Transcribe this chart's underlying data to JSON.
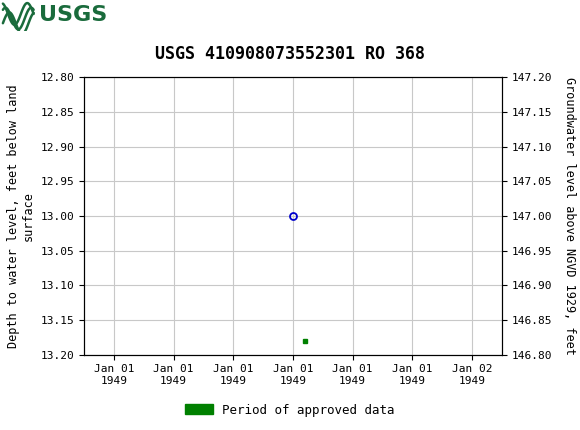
{
  "title": "USGS 410908073552301 RO 368",
  "ylabel_left": "Depth to water level, feet below land\nsurface",
  "ylabel_right": "Groundwater level above NGVD 1929, feet",
  "ylim_left": [
    12.8,
    13.2
  ],
  "ylim_right": [
    146.8,
    147.2
  ],
  "yticks_left": [
    12.8,
    12.85,
    12.9,
    12.95,
    13.0,
    13.05,
    13.1,
    13.15,
    13.2
  ],
  "yticks_right": [
    146.8,
    146.85,
    146.9,
    146.95,
    147.0,
    147.05,
    147.1,
    147.15,
    147.2
  ],
  "xtick_labels": [
    "Jan 01\n1949",
    "Jan 01\n1949",
    "Jan 01\n1949",
    "Jan 01\n1949",
    "Jan 01\n1949",
    "Jan 01\n1949",
    "Jan 02\n1949"
  ],
  "xtick_positions": [
    0,
    1,
    2,
    3,
    4,
    5,
    6
  ],
  "data_point_x": 3,
  "data_point_y": 13.0,
  "approved_point_x": 3.2,
  "approved_point_y": 13.18,
  "header_color": "#1a6b3c",
  "header_text_color": "#ffffff",
  "background_color": "#ffffff",
  "grid_color": "#c8c8c8",
  "marker_color": "#0000cc",
  "approved_color": "#008000",
  "font_family": "DejaVu Sans Mono",
  "title_fontsize": 12,
  "tick_fontsize": 8,
  "label_fontsize": 8.5,
  "legend_fontsize": 9
}
